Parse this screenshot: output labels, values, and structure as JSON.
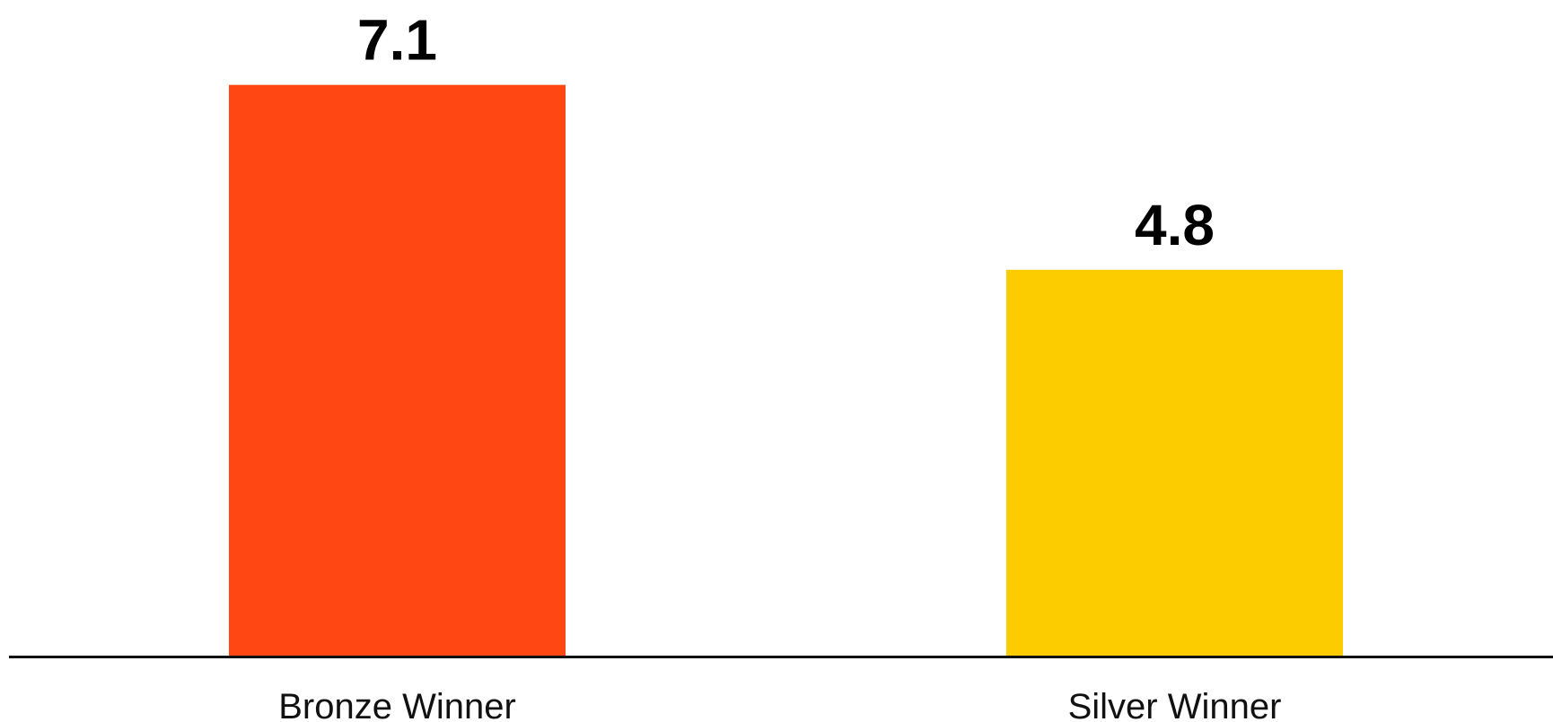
{
  "chart_data": {
    "type": "bar",
    "categories": [
      "Bronze Winner",
      "Silver Winner"
    ],
    "values": [
      7.1,
      4.8
    ],
    "colors": [
      "#ff4713",
      "#fccc00"
    ],
    "ylim": [
      0,
      8
    ]
  }
}
